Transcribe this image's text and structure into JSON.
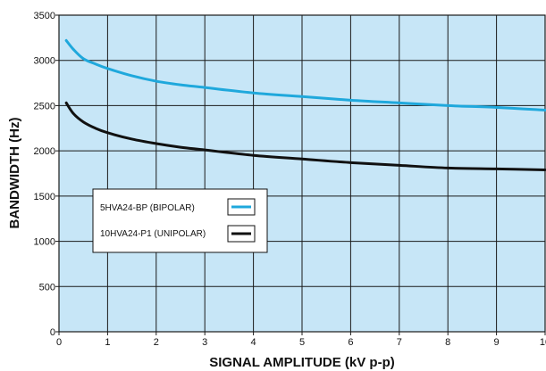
{
  "chart_data": {
    "type": "line",
    "title": "",
    "xlabel": "SIGNAL AMPLITUDE (kV p-p)",
    "ylabel": "BANDWIDTH (Hz)",
    "xlim": [
      0,
      10
    ],
    "ylim": [
      0,
      3500
    ],
    "xticks": [
      "0",
      "1",
      "2",
      "3",
      "4",
      "5",
      "6",
      "7",
      "8",
      "9",
      "10"
    ],
    "yticks": [
      "0",
      "500",
      "1000",
      "1500",
      "2000",
      "2500",
      "3000",
      "3500"
    ],
    "grid": true,
    "legend_position": "center-left",
    "plot_background": "#c7e6f7",
    "series": [
      {
        "name": "5HVA24-BP (BIPOLAR)",
        "color": "#1fa8dc",
        "x": [
          0.15,
          0.3,
          0.5,
          0.75,
          1,
          1.5,
          2,
          2.5,
          3,
          4,
          5,
          6,
          7,
          8,
          9,
          10
        ],
        "y": [
          3220,
          3120,
          3020,
          2960,
          2910,
          2830,
          2770,
          2730,
          2700,
          2640,
          2600,
          2560,
          2530,
          2500,
          2480,
          2450
        ]
      },
      {
        "name": "10HVA24-P1 (UNIPOLAR)",
        "color": "#111111",
        "x": [
          0.15,
          0.3,
          0.5,
          0.75,
          1,
          1.5,
          2,
          2.5,
          3,
          4,
          5,
          6,
          7,
          8,
          9,
          10
        ],
        "y": [
          2530,
          2410,
          2320,
          2250,
          2200,
          2130,
          2080,
          2040,
          2010,
          1950,
          1910,
          1870,
          1840,
          1810,
          1800,
          1790
        ]
      }
    ]
  }
}
